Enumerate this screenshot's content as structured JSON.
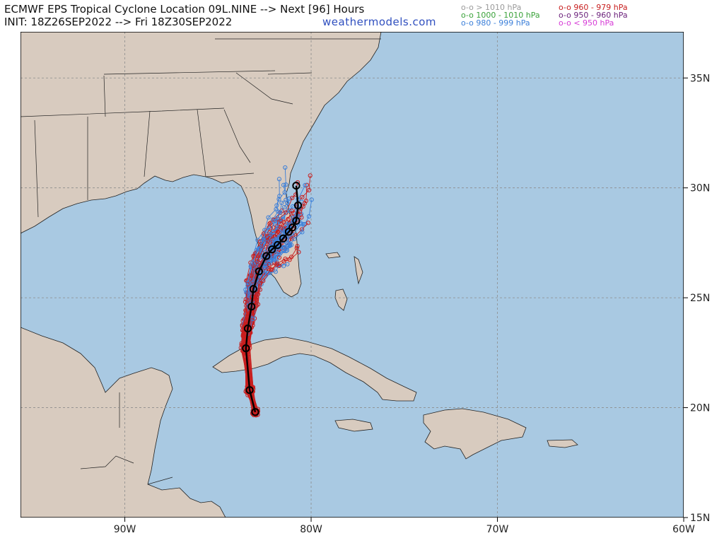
{
  "header": {
    "title_line1": "ECMWF EPS Tropical Cyclone Location 09L.NINE --> Next [96] Hours",
    "title_line2": "INIT: 18Z26SEP2022 --> Fri 18Z30SEP2022",
    "brand": "weathermodels.com"
  },
  "legend": [
    {
      "label": "o-o > 1010 hPa",
      "color": "#9a9a9a"
    },
    {
      "label": "o-o 1000 - 1010 hPa",
      "color": "#3aa23a"
    },
    {
      "label": "o-o 980 - 999 hPa",
      "color": "#3b7fd9"
    },
    {
      "label": "o-o 960 - 979 hPa",
      "color": "#c81e1e"
    },
    {
      "label": "o-o 950 - 960 hPa",
      "color": "#6a1f7a"
    },
    {
      "label": "o-o < 950 hPa",
      "color": "#d63ad6"
    }
  ],
  "map": {
    "lon_range": [
      -95.6,
      -60
    ],
    "lat_range": [
      15,
      37.1
    ],
    "lon_ticks": [
      {
        "lon": -90,
        "label": "90W"
      },
      {
        "lon": -80,
        "label": "80W"
      },
      {
        "lon": -70,
        "label": "70W"
      },
      {
        "lon": -60,
        "label": "60W"
      }
    ],
    "lat_ticks": [
      {
        "lat": 35,
        "label": "35N"
      },
      {
        "lat": 30,
        "label": "30N"
      },
      {
        "lat": 25,
        "label": "25N"
      },
      {
        "lat": 20,
        "label": "20N"
      },
      {
        "lat": 15,
        "label": "15N"
      }
    ],
    "colors": {
      "ocean": "#a9c9e2",
      "land": "#d8cbbf",
      "border": "#222222",
      "grid": "#8c8c8c",
      "mean_track": "#000000"
    },
    "mean_track": [
      [
        -83.0,
        19.8
      ],
      [
        -83.3,
        20.8
      ],
      [
        -83.5,
        22.7
      ],
      [
        -83.4,
        23.6
      ],
      [
        -83.2,
        24.6
      ],
      [
        -83.1,
        25.4
      ],
      [
        -82.8,
        26.2
      ],
      [
        -82.4,
        26.9
      ],
      [
        -82.1,
        27.2
      ],
      [
        -81.8,
        27.4
      ],
      [
        -81.5,
        27.7
      ],
      [
        -81.2,
        28.0
      ],
      [
        -81.0,
        28.2
      ],
      [
        -80.8,
        28.5
      ],
      [
        -80.7,
        29.2
      ],
      [
        -80.8,
        30.1
      ]
    ]
  }
}
